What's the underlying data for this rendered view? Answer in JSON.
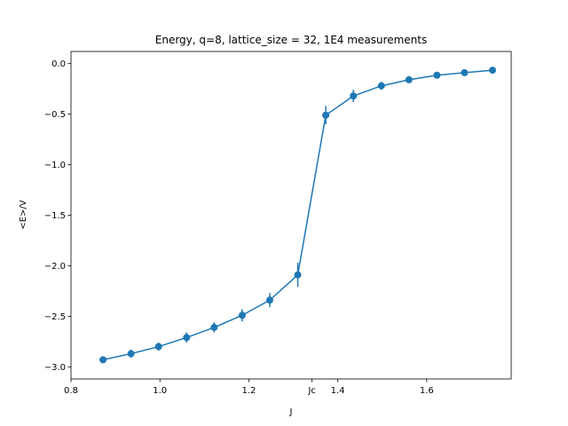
{
  "chart_data": {
    "type": "line",
    "title": "Energy, q=8, lattice_size = 32, 1E4 measurements",
    "xlabel": "J",
    "ylabel": "<E>/V",
    "xlim": [
      0.8,
      1.79
    ],
    "ylim": [
      -3.12,
      0.12
    ],
    "xticks": [
      {
        "value": 0.8,
        "label": "0.8"
      },
      {
        "value": 1.0,
        "label": "1.0"
      },
      {
        "value": 1.2,
        "label": "1.2"
      },
      {
        "value": 1.342,
        "label": "Jc"
      },
      {
        "value": 1.4,
        "label": "1.4"
      },
      {
        "value": 1.6,
        "label": "1.6"
      }
    ],
    "yticks": [
      {
        "value": 0.0,
        "label": "0.0"
      },
      {
        "value": -0.5,
        "label": "−0.5"
      },
      {
        "value": -1.0,
        "label": "−1.0"
      },
      {
        "value": -1.5,
        "label": "−1.5"
      },
      {
        "value": -2.0,
        "label": "−2.0"
      },
      {
        "value": -2.5,
        "label": "−2.5"
      },
      {
        "value": -3.0,
        "label": "−3.0"
      }
    ],
    "grid": false,
    "legend": null,
    "color": "#1f77b4",
    "series": [
      {
        "x": [
          0.872,
          0.935,
          0.997,
          1.06,
          1.122,
          1.185,
          1.247,
          1.31,
          1.373,
          1.435,
          1.498,
          1.56,
          1.623,
          1.685,
          1.748
        ],
        "y": [
          -2.93,
          -2.87,
          -2.8,
          -2.71,
          -2.61,
          -2.49,
          -2.34,
          -2.09,
          -0.51,
          -0.32,
          -0.22,
          -0.16,
          -0.115,
          -0.09,
          -0.065
        ],
        "yerr": [
          0.03,
          0.04,
          0.04,
          0.05,
          0.05,
          0.06,
          0.07,
          0.12,
          0.09,
          0.06,
          0.04,
          0.03,
          0.02,
          0.02,
          0.015
        ]
      }
    ]
  }
}
